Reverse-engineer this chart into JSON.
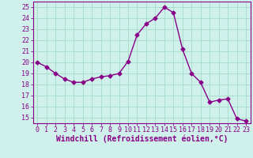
{
  "x": [
    0,
    1,
    2,
    3,
    4,
    5,
    6,
    7,
    8,
    9,
    10,
    11,
    12,
    13,
    14,
    15,
    16,
    17,
    18,
    19,
    20,
    21,
    22,
    23
  ],
  "y": [
    20.0,
    19.6,
    19.0,
    18.5,
    18.2,
    18.2,
    18.5,
    18.7,
    18.8,
    19.0,
    20.1,
    22.5,
    23.5,
    24.0,
    25.0,
    24.5,
    21.2,
    19.0,
    18.2,
    16.4,
    16.6,
    16.7,
    14.9,
    14.7
  ],
  "line_color": "#880088",
  "marker": "D",
  "marker_size": 2.5,
  "line_width": 1.0,
  "background_color": "#cff0eb",
  "grid_color": "#aaddcc",
  "xlabel": "Windchill (Refroidissement éolien,°C)",
  "xlabel_color": "#880088",
  "xlabel_fontsize": 7,
  "ylabel_ticks": [
    15,
    16,
    17,
    18,
    19,
    20,
    21,
    22,
    23,
    24,
    25
  ],
  "xlim": [
    -0.5,
    23.5
  ],
  "ylim": [
    14.5,
    25.5
  ],
  "xtick_labels": [
    "0",
    "1",
    "2",
    "3",
    "4",
    "5",
    "6",
    "7",
    "8",
    "9",
    "10",
    "11",
    "12",
    "13",
    "14",
    "15",
    "16",
    "17",
    "18",
    "19",
    "20",
    "21",
    "22",
    "23"
  ],
  "tick_color": "#880088",
  "tick_fontsize": 6,
  "spine_color": "#880088"
}
